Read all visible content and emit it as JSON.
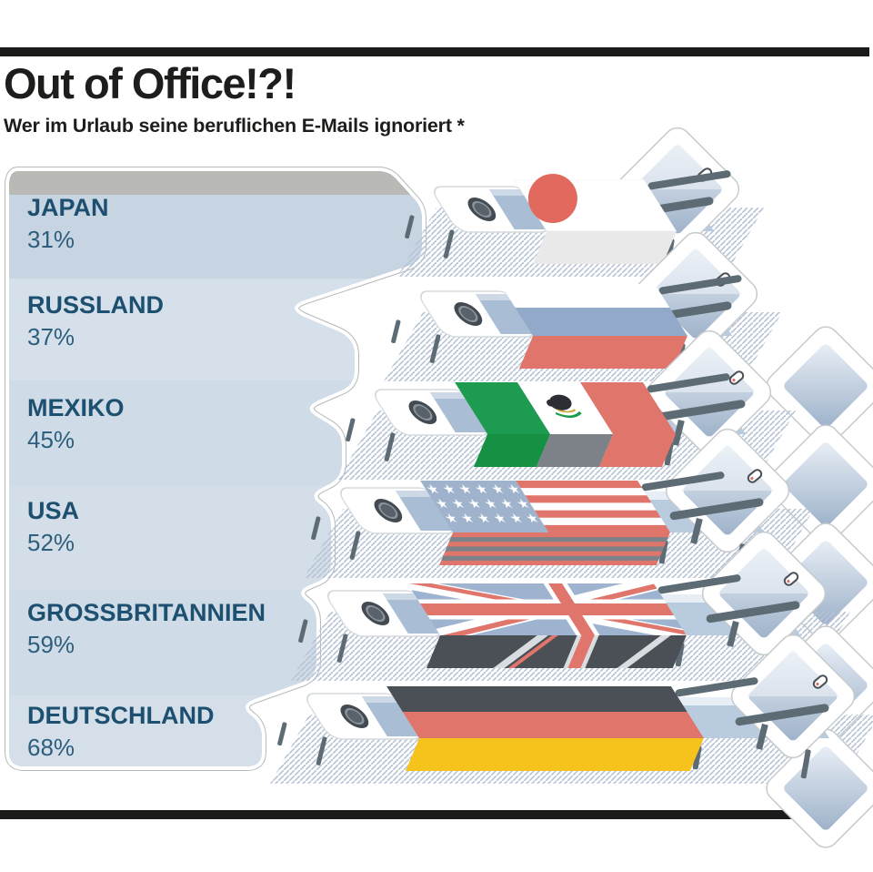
{
  "header": {
    "title": "Out of Office!?!",
    "subtitle": "Wer im Urlaub seine beruflichen E-Mails ignoriert *"
  },
  "chart_data": {
    "type": "bar",
    "style": "isometric-pictogram-pyramid (flag towels on beach loungers)",
    "title": "Out of Office!?!",
    "subtitle": "Wer im Urlaub seine beruflichen E-Mails ignoriert *",
    "categories": [
      "JAPAN",
      "RUSSLAND",
      "MEXIKO",
      "USA",
      "GROSSBRITANNIEN",
      "DEUTSCHLAND"
    ],
    "values": [
      31,
      37,
      45,
      52,
      59,
      68
    ],
    "value_labels": [
      "31%",
      "37%",
      "45%",
      "52%",
      "59%",
      "68%"
    ],
    "unit": "%",
    "footnote_marker": "*",
    "legend_position": "none",
    "grid": false,
    "value_axis_range": [
      0,
      100
    ]
  },
  "rows": [
    {
      "country": "JAPAN",
      "pct": "31%",
      "flag": "japan"
    },
    {
      "country": "RUSSLAND",
      "pct": "37%",
      "flag": "russland"
    },
    {
      "country": "MEXIKO",
      "pct": "45%",
      "flag": "mexiko"
    },
    {
      "country": "USA",
      "pct": "52%",
      "flag": "usa"
    },
    {
      "country": "GROSSBRITANNIEN",
      "pct": "59%",
      "flag": "gb"
    },
    {
      "country": "DEUTSCHLAND",
      "pct": "68%",
      "flag": "deutschland"
    }
  ],
  "colors": {
    "bar_black": "#1b1b19",
    "title_text": "#1d1d1b",
    "label_text": "#1d5070",
    "panel_fill": "#cfdce7",
    "panel_band_dark": "#c7d4e1",
    "panel_band_light": "#d5e0ea",
    "panel_top_strip": "#b9bab5",
    "panel_outline": "#b5b9b9",
    "hatch_line": "#b7c3d5",
    "chair_frame": "#ffffff",
    "chair_outline": "#c6cbce",
    "chair_seat": "#b9cbde",
    "chair_seat_light": "#e8eef5",
    "metal_gray": "#5c6b74",
    "towel_blue": "#a9bdd4",
    "shadow_white": "#e9e9e9",
    "shadow_gray": "#7d8288",
    "flag_red": "#e0756b",
    "japan_sun": "#e2695e",
    "russia_blue": "#93a9c9",
    "mexico_green": "#1d9b51",
    "mexico_green_dark": "#169043",
    "usa_canton": "#9fb3cd",
    "uk_field": "#9db3d0",
    "uk_dark": "#4a5056",
    "germany_black": "#4a5056",
    "germany_gold": "#f6c31c"
  }
}
